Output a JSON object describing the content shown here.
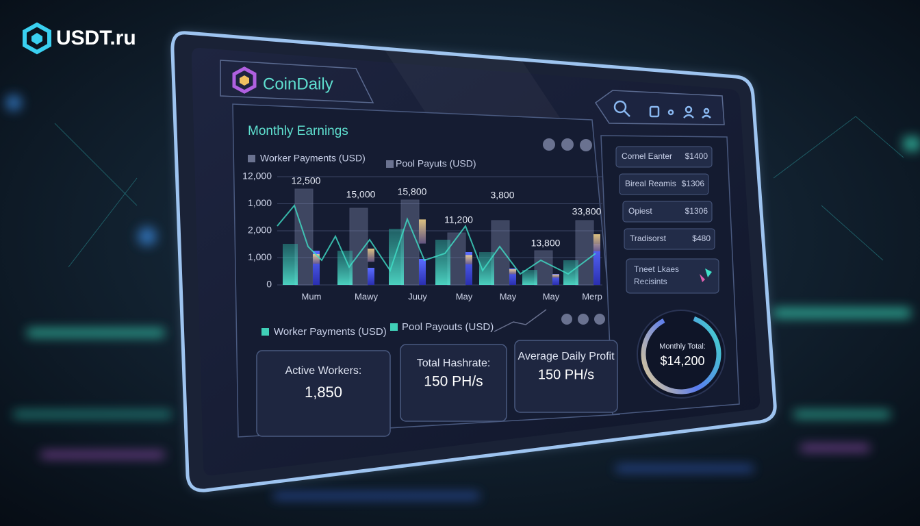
{
  "brand": {
    "name": "USDT.ru"
  },
  "app": {
    "name": "CoinDaily"
  },
  "earnings": {
    "title": "Monthly Earnings",
    "legend": [
      "Worker Payments (USD)",
      "Pool Payuts (USD)"
    ],
    "y_axis_labels": [
      "12,000",
      "1,000",
      "2,000",
      "1,000",
      "0"
    ],
    "bar_labels": [
      "12,500",
      "15,000",
      "15,800",
      "11,200",
      "3,800",
      "13,800",
      "33,800"
    ],
    "months": [
      "Mum",
      "Mawy",
      "Juuy",
      "May",
      "May",
      "May",
      "Merp"
    ],
    "legend_bottom": [
      "Worker Payments (USD)",
      "Pool Payouts (USD)"
    ]
  },
  "stats": [
    {
      "label": "Active Workers:",
      "value": "1,850"
    },
    {
      "label": "Total Hashrate:",
      "value": "150 PH/s"
    },
    {
      "label": "Average Daily Profit",
      "value": "150 PH/s"
    }
  ],
  "side_list": [
    {
      "label": "Cornel Eanter",
      "value": "$1400"
    },
    {
      "label": "Bireal Reamis",
      "value": "$1306"
    },
    {
      "label": "Opiest",
      "value": "$1306"
    },
    {
      "label": "Tradisorst",
      "value": "$480"
    }
  ],
  "side_card": {
    "lines": [
      "Tneet Lkaes",
      "Recisints"
    ]
  },
  "monthly_total": {
    "label": "Monthly Total:",
    "value": "$14,200"
  }
}
